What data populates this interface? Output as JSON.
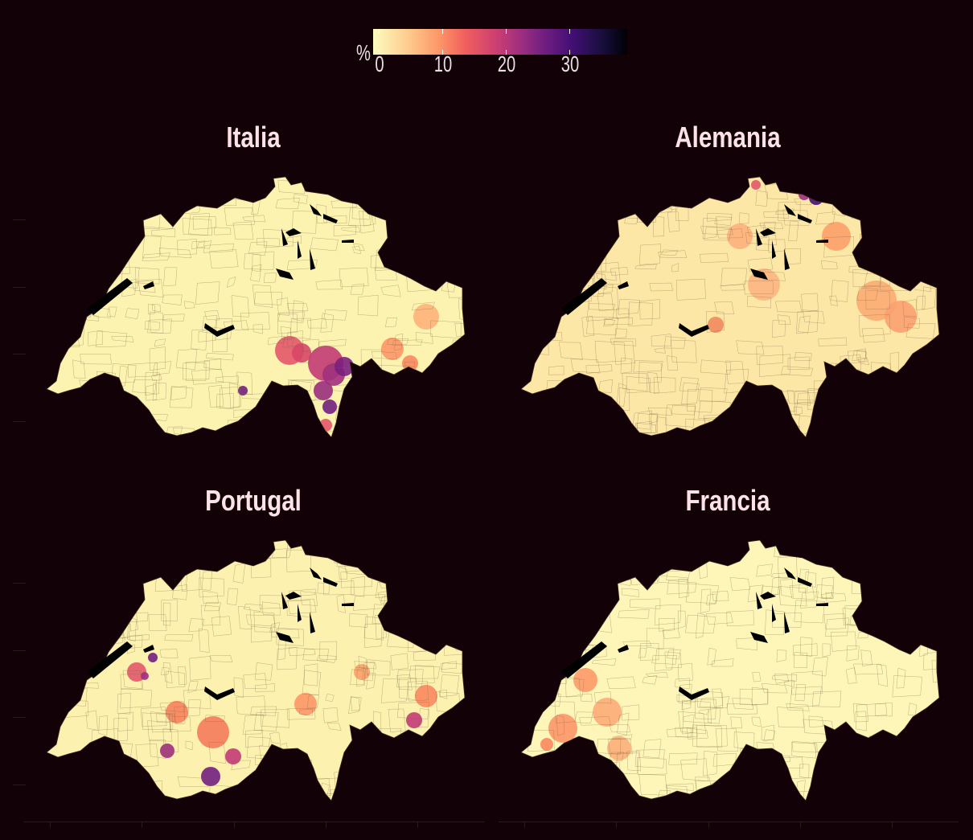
{
  "legend": {
    "unit": "%",
    "tick_labels": [
      "0",
      "10",
      "20",
      "30"
    ],
    "tick_values": [
      0,
      10,
      20,
      30
    ],
    "range": [
      0,
      38
    ],
    "palette": [
      "#fcfdbf",
      "#feca8d",
      "#fd9668",
      "#f1605d",
      "#cd4071",
      "#9e2f7f",
      "#721f81",
      "#440f76",
      "#180f3d",
      "#000004"
    ]
  },
  "panels": [
    {
      "title": "Italia",
      "base_color": "#fdf3b0",
      "hot_region": "south-ticino"
    },
    {
      "title": "Alemania",
      "base_color": "#fde7a6",
      "hot_region": "north-east"
    },
    {
      "title": "Portugal",
      "base_color": "#fdf1b0",
      "hot_region": "south-west"
    },
    {
      "title": "Francia",
      "base_color": "#fdf6b8",
      "hot_region": "west"
    }
  ]
}
